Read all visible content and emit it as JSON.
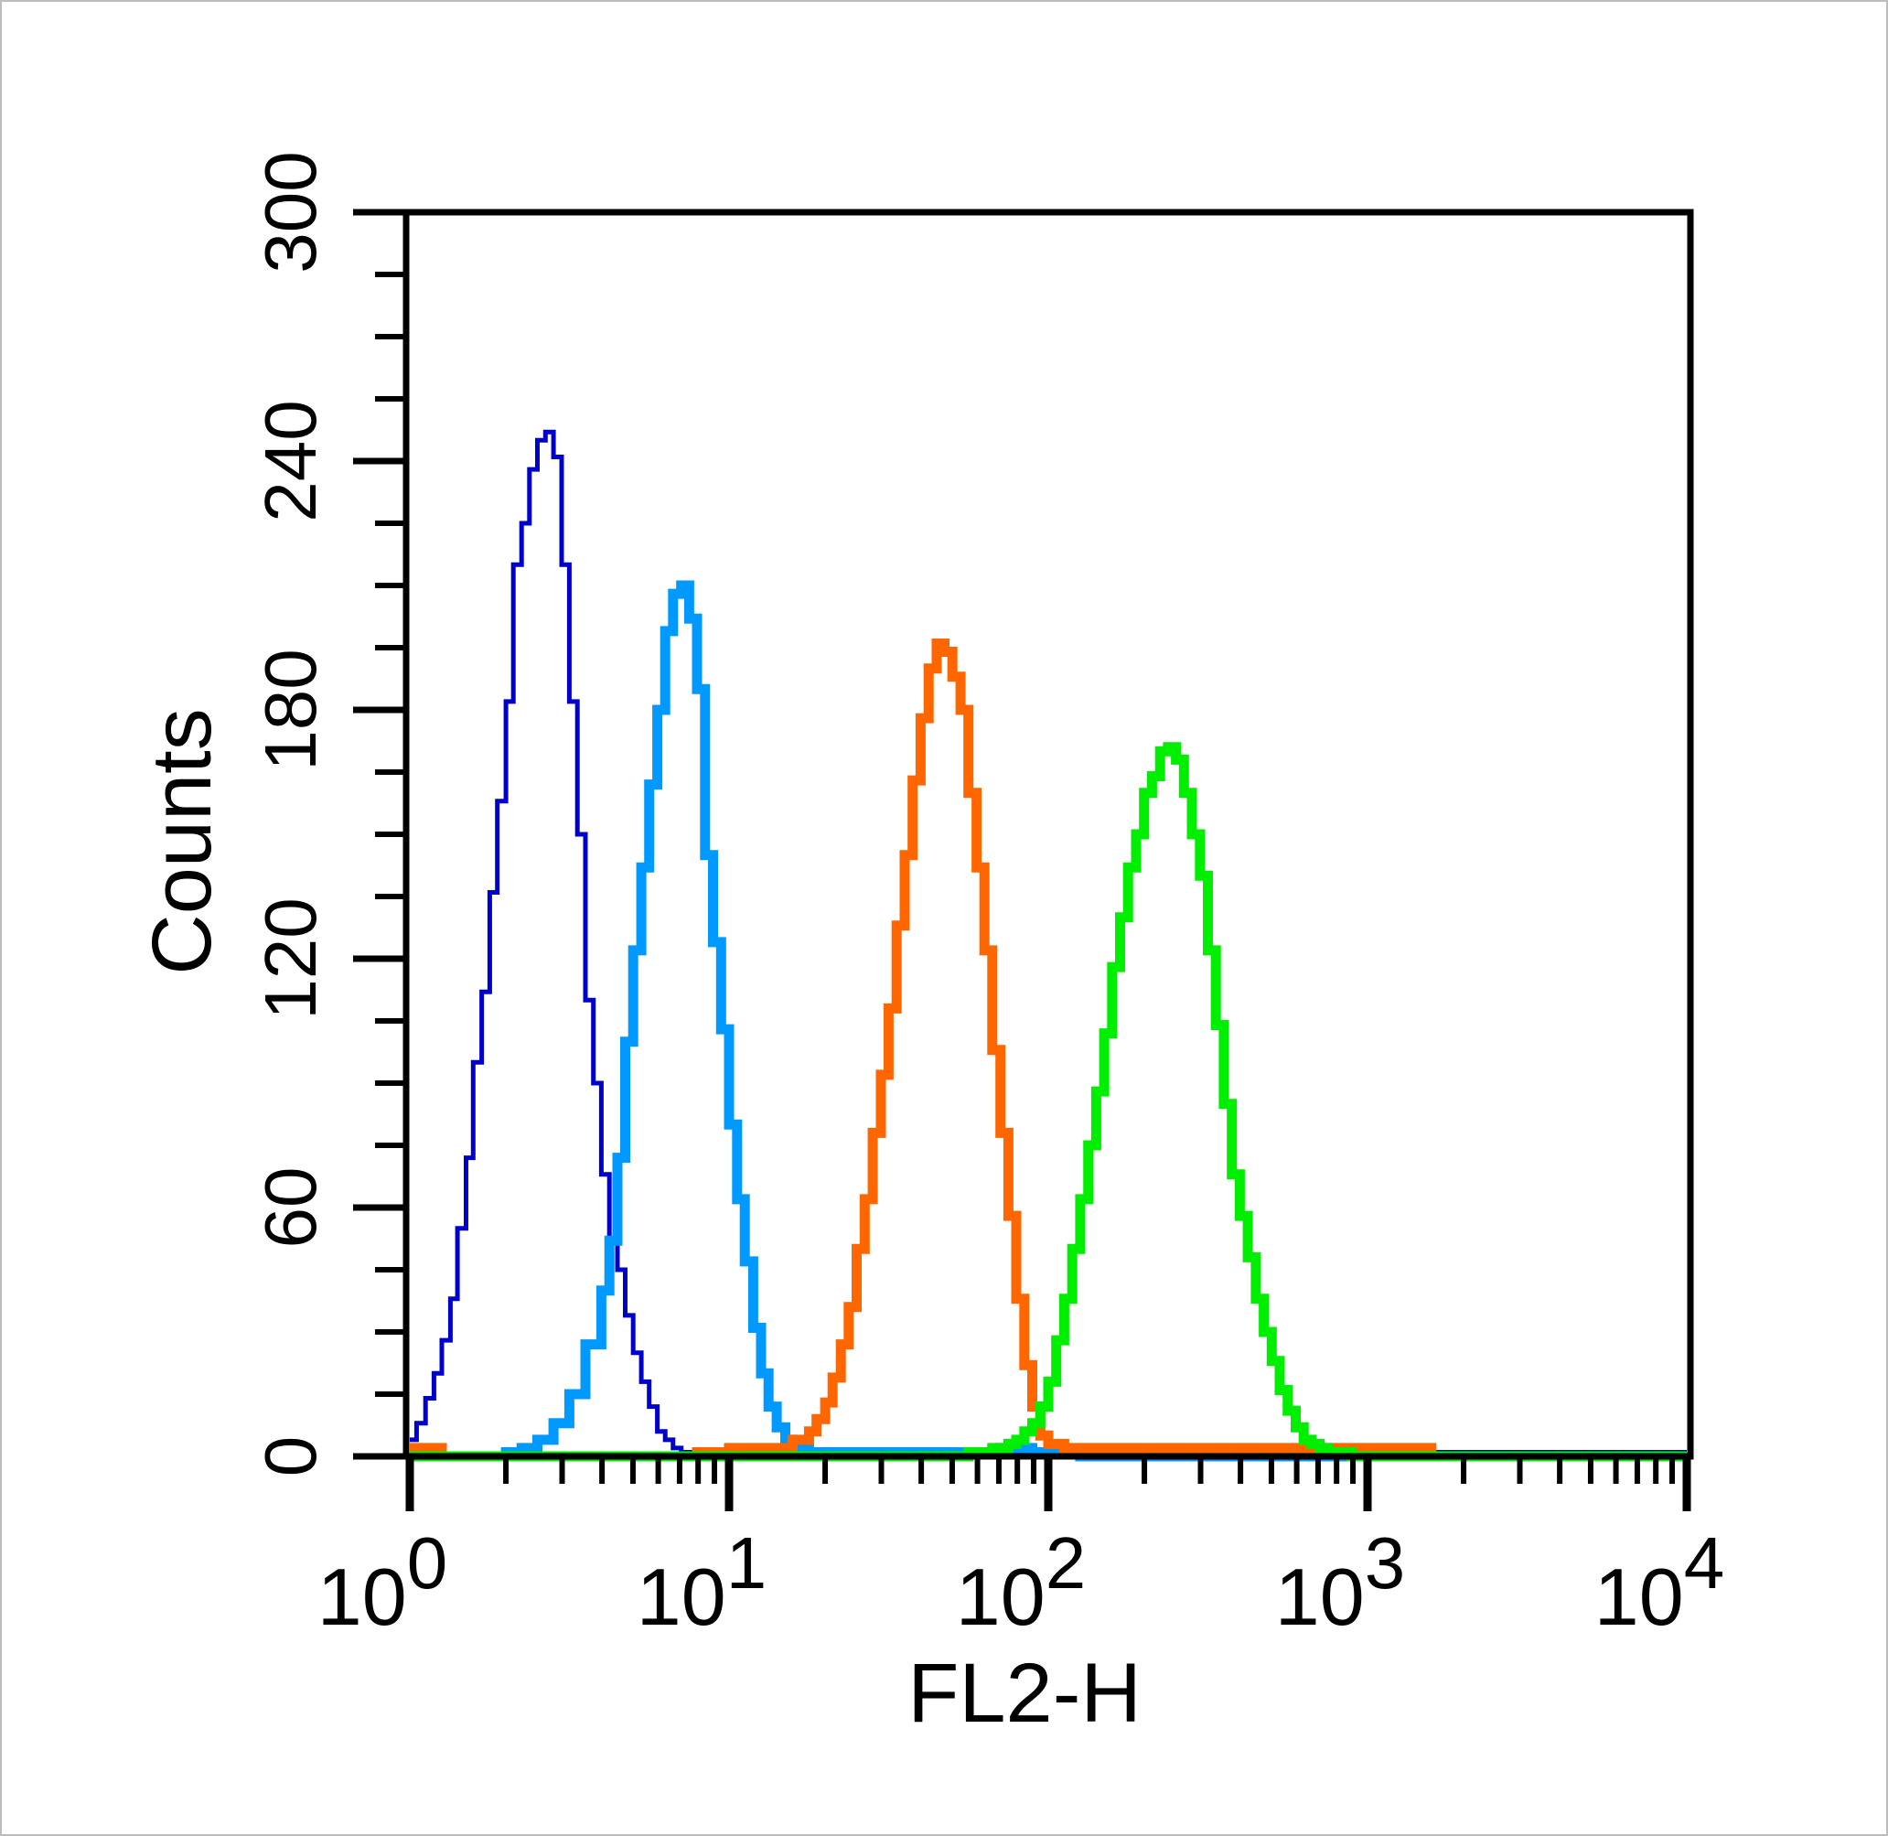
{
  "chart_data": {
    "type": "area",
    "xlabel": "FL2-H",
    "ylabel": "Counts",
    "x_scale": "log",
    "xlim": [
      1,
      10000
    ],
    "ylim": [
      0,
      300
    ],
    "x_ticks": [
      {
        "value": 1,
        "base": "10",
        "exp": "0"
      },
      {
        "value": 10,
        "base": "10",
        "exp": "1"
      },
      {
        "value": 100,
        "base": "10",
        "exp": "2"
      },
      {
        "value": 1000,
        "base": "10",
        "exp": "3"
      },
      {
        "value": 10000,
        "base": "10",
        "exp": "4"
      }
    ],
    "y_ticks": [
      "0",
      "60",
      "120",
      "180",
      "240",
      "300"
    ],
    "grid": false,
    "legend": "none",
    "series": [
      {
        "color": "#0000cc",
        "line": "thin",
        "x": [
          1.0,
          1.05,
          1.12,
          1.19,
          1.26,
          1.34,
          1.41,
          1.5,
          1.58,
          1.68,
          1.78,
          1.88,
          2.0,
          2.11,
          2.24,
          2.37,
          2.51,
          2.66,
          2.82,
          2.99,
          3.16,
          3.35,
          3.55,
          3.76,
          3.98,
          4.22,
          4.47,
          4.73,
          5.01,
          5.31,
          5.62,
          5.96,
          6.31,
          6.68,
          7.08,
          7.5,
          7.94,
          8.41,
          8.91,
          9.44,
          10.0,
          10.6,
          11.2,
          11.9,
          12.6,
          13.3,
          14.1,
          15.0,
          15.8,
          16.8,
          17.8,
          18.8,
          20.0,
          21.1,
          22.4,
          23.7,
          25.1,
          26.6,
          28.2,
          29.9,
          31.6,
          35.5,
          39.8,
          44.7,
          50.1,
          56.2,
          63.1,
          70.8,
          79.4,
          89.1,
          100.0,
          112.2,
          125.9,
          141.3,
          158.5,
          177.8,
          199.5,
          223.9,
          251.2,
          281.8,
          316.2,
          398.1,
          501.2,
          631.0,
          794.3,
          1000,
          1259,
          1585,
          1995,
          2512,
          3162,
          3981,
          5012,
          6310,
          7943,
          10000
        ],
        "values": [
          4,
          8,
          14,
          20,
          28,
          38,
          55,
          72,
          95,
          112,
          136,
          158,
          182,
          215,
          225,
          238,
          245,
          247,
          241,
          215,
          182,
          150,
          110,
          90,
          68,
          52,
          45,
          34,
          25,
          18,
          12,
          6,
          4,
          2,
          1,
          1,
          1,
          1,
          1,
          1,
          1,
          1,
          1,
          1,
          1,
          1,
          1,
          1,
          1,
          1,
          1,
          1,
          1,
          1,
          1,
          1,
          1,
          1,
          1,
          1,
          1,
          1,
          1,
          1,
          1,
          1,
          1,
          1,
          1,
          1,
          1,
          1,
          1,
          1,
          1,
          1,
          1,
          1,
          1,
          1,
          1,
          1,
          1,
          1,
          1,
          1,
          1,
          1,
          1,
          1,
          1,
          1,
          1,
          1,
          1,
          1
        ]
      },
      {
        "color": "#0099ff",
        "line": "thick",
        "x": [
          1.0,
          1.26,
          1.58,
          2.0,
          2.24,
          2.51,
          2.82,
          3.16,
          3.55,
          3.98,
          4.22,
          4.47,
          4.73,
          5.01,
          5.31,
          5.62,
          5.96,
          6.31,
          6.68,
          7.08,
          7.5,
          7.94,
          8.41,
          8.91,
          9.44,
          10.0,
          10.6,
          11.2,
          11.9,
          12.6,
          13.3,
          14.1,
          15.0,
          15.8,
          16.8,
          17.8,
          20.0,
          25.1,
          31.6,
          39.8,
          50.1,
          63.1,
          70.8,
          79.4,
          89.1,
          100.0,
          125.9,
          158.5,
          199.5,
          251.2,
          316.2,
          398.1,
          501.2,
          631.0,
          794.3,
          1000,
          1585,
          2512,
          3981,
          6310,
          10000
        ],
        "values": [
          0,
          0,
          0,
          1,
          2,
          4,
          8,
          15,
          27,
          40,
          52,
          72,
          100,
          122,
          142,
          162,
          180,
          199,
          208,
          210,
          202,
          185,
          145,
          124,
          103,
          80,
          62,
          47,
          31,
          20,
          12,
          7,
          4,
          3,
          2,
          1,
          1,
          1,
          1,
          1,
          1,
          1,
          2,
          2,
          1,
          1,
          0,
          0,
          0,
          0,
          0,
          0,
          0,
          0,
          0,
          0,
          0,
          0,
          0,
          0,
          0
        ]
      },
      {
        "color": "#ff6600",
        "line": "thick",
        "x": [
          1.0,
          1.26,
          1.58,
          2.0,
          3.16,
          5.01,
          7.94,
          10.0,
          11.2,
          12.6,
          14.1,
          15.8,
          17.8,
          18.8,
          20.0,
          21.1,
          22.4,
          23.7,
          25.1,
          26.6,
          28.2,
          29.9,
          31.6,
          33.5,
          35.5,
          37.6,
          39.8,
          42.2,
          44.7,
          47.3,
          50.1,
          53.1,
          56.2,
          59.6,
          63.1,
          66.8,
          70.8,
          75.0,
          79.4,
          84.1,
          89.1,
          94.4,
          100.0,
          112.2,
          125.9,
          141.3,
          158.5,
          199.5,
          251.2,
          316.2,
          398.1,
          501.2,
          631.0,
          794.3,
          1000,
          1585,
          2512,
          3981,
          6310,
          10000
        ],
        "values": [
          2,
          0,
          0,
          0,
          0,
          0,
          1,
          2,
          2,
          2,
          2,
          4,
          6,
          9,
          13,
          19,
          27,
          36,
          50,
          62,
          78,
          92,
          108,
          128,
          145,
          163,
          178,
          190,
          196,
          194,
          188,
          180,
          160,
          142,
          122,
          98,
          78,
          58,
          38,
          22,
          12,
          5,
          3,
          2,
          2,
          2,
          2,
          2,
          2,
          2,
          2,
          2,
          2,
          2,
          2,
          0,
          0,
          0,
          0,
          0
        ]
      },
      {
        "color": "#00ee00",
        "line": "thick",
        "x": [
          1.0,
          1.58,
          2.51,
          3.98,
          6.31,
          10.0,
          15.8,
          25.1,
          39.8,
          50.1,
          56.2,
          63.1,
          66.8,
          70.8,
          75.0,
          79.4,
          84.1,
          89.1,
          94.4,
          100.0,
          105.9,
          112.2,
          118.9,
          125.9,
          133.4,
          141.3,
          149.6,
          158.5,
          167.9,
          177.8,
          188.4,
          199.5,
          211.3,
          223.9,
          237.1,
          251.2,
          266.1,
          281.8,
          298.5,
          316.2,
          335.0,
          354.8,
          375.8,
          398.1,
          421.7,
          446.7,
          473.2,
          501.2,
          530.9,
          562.3,
          595.7,
          631.0,
          668.3,
          707.9,
          749.9,
          794.3,
          841.4,
          891.3,
          944.1,
          1000,
          1122,
          1259,
          1585,
          1995,
          2512,
          3162,
          3981,
          5012,
          6310,
          7943,
          10000
        ],
        "values": [
          0,
          0,
          0,
          0,
          0,
          0,
          0,
          0,
          0,
          0,
          1,
          1,
          2,
          2,
          3,
          4,
          6,
          8,
          12,
          18,
          28,
          38,
          50,
          62,
          75,
          88,
          102,
          118,
          130,
          142,
          150,
          160,
          164,
          170,
          171,
          168,
          160,
          150,
          140,
          122,
          104,
          85,
          68,
          58,
          48,
          38,
          30,
          23,
          16,
          11,
          7,
          4,
          3,
          2,
          1,
          1,
          1,
          0,
          0,
          0,
          0,
          0,
          0,
          0,
          0,
          0,
          0,
          0,
          0,
          0,
          0
        ]
      }
    ]
  }
}
